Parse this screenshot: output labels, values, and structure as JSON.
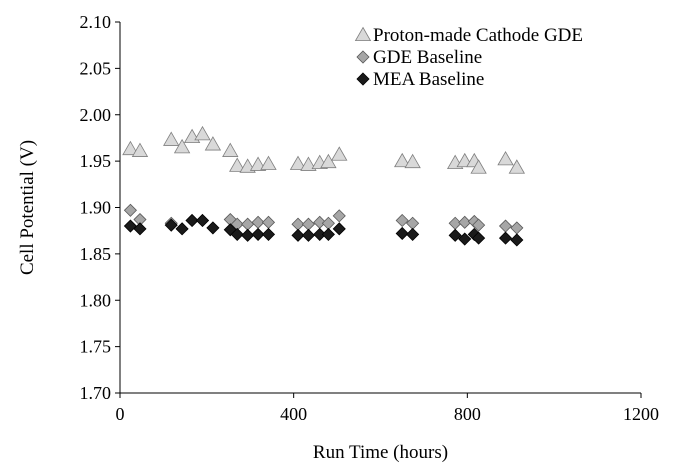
{
  "chart_data": {
    "type": "scatter",
    "title": "",
    "xlabel": "Run Time (hours)",
    "ylabel": "Cell Potential (V)",
    "xlim": [
      0,
      1200
    ],
    "ylim": [
      1.7,
      2.1
    ],
    "xticks": [
      0,
      400,
      800,
      1200
    ],
    "yticks": [
      1.7,
      1.75,
      1.8,
      1.85,
      1.9,
      1.95,
      2.0,
      2.05,
      2.1
    ],
    "xtick_labels": [
      "0",
      "400",
      "800",
      "1200"
    ],
    "ytick_labels": [
      "1.70",
      "1.75",
      "1.80",
      "1.85",
      "1.90",
      "1.95",
      "2.00",
      "2.05",
      "2.10"
    ],
    "grid": false,
    "legend_position": "top-right",
    "series": [
      {
        "name": "Proton-made Cathode GDE",
        "marker": "triangle",
        "color": "#d9d9d9",
        "stroke": "#7f7f7f",
        "points": [
          [
            24,
            1.963
          ],
          [
            46,
            1.961
          ],
          [
            118,
            1.973
          ],
          [
            143,
            1.965
          ],
          [
            166,
            1.976
          ],
          [
            190,
            1.979
          ],
          [
            214,
            1.968
          ],
          [
            254,
            1.961
          ],
          [
            270,
            1.945
          ],
          [
            294,
            1.944
          ],
          [
            318,
            1.946
          ],
          [
            342,
            1.947
          ],
          [
            410,
            1.947
          ],
          [
            434,
            1.946
          ],
          [
            460,
            1.948
          ],
          [
            480,
            1.949
          ],
          [
            505,
            1.957
          ],
          [
            650,
            1.95
          ],
          [
            674,
            1.949
          ],
          [
            772,
            1.948
          ],
          [
            794,
            1.95
          ],
          [
            816,
            1.95
          ],
          [
            826,
            1.943
          ],
          [
            888,
            1.952
          ],
          [
            914,
            1.943
          ]
        ]
      },
      {
        "name": "GDE Baseline",
        "marker": "diamond",
        "color": "#a6a6a6",
        "stroke": "#595959",
        "points": [
          [
            24,
            1.897
          ],
          [
            46,
            1.887
          ],
          [
            118,
            1.883
          ],
          [
            166,
            1.886
          ],
          [
            190,
            1.886
          ],
          [
            254,
            1.887
          ],
          [
            270,
            1.882
          ],
          [
            294,
            1.882
          ],
          [
            318,
            1.884
          ],
          [
            342,
            1.884
          ],
          [
            410,
            1.882
          ],
          [
            434,
            1.882
          ],
          [
            460,
            1.884
          ],
          [
            480,
            1.883
          ],
          [
            505,
            1.891
          ],
          [
            650,
            1.886
          ],
          [
            674,
            1.883
          ],
          [
            772,
            1.883
          ],
          [
            794,
            1.884
          ],
          [
            816,
            1.885
          ],
          [
            826,
            1.881
          ],
          [
            888,
            1.88
          ],
          [
            914,
            1.878
          ]
        ]
      },
      {
        "name": "MEA Baseline",
        "marker": "diamond",
        "color": "#1a1a1a",
        "stroke": "#000000",
        "points": [
          [
            24,
            1.88
          ],
          [
            46,
            1.877
          ],
          [
            118,
            1.881
          ],
          [
            143,
            1.877
          ],
          [
            166,
            1.886
          ],
          [
            190,
            1.886
          ],
          [
            214,
            1.878
          ],
          [
            254,
            1.876
          ],
          [
            270,
            1.871
          ],
          [
            294,
            1.87
          ],
          [
            318,
            1.871
          ],
          [
            342,
            1.871
          ],
          [
            410,
            1.87
          ],
          [
            434,
            1.87
          ],
          [
            460,
            1.871
          ],
          [
            480,
            1.871
          ],
          [
            505,
            1.877
          ],
          [
            650,
            1.872
          ],
          [
            674,
            1.871
          ],
          [
            772,
            1.87
          ],
          [
            794,
            1.866
          ],
          [
            816,
            1.871
          ],
          [
            826,
            1.867
          ],
          [
            888,
            1.867
          ],
          [
            914,
            1.865
          ]
        ]
      }
    ]
  }
}
